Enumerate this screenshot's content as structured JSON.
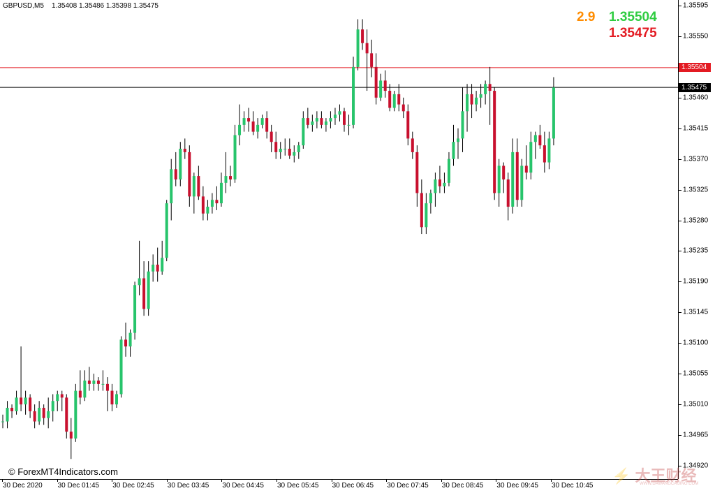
{
  "header": {
    "symbol": "GBPUSD,M5",
    "ohlc": "1.35408 1.35486 1.35398 1.35475"
  },
  "spread_panel": {
    "spread": "2.9",
    "ask": "1.35504",
    "bid": "1.35475"
  },
  "watermark": "© ForexMT4Indicators.com",
  "colors": {
    "bull": "#27c46b",
    "bear": "#c8102e",
    "ask_line": "#e31b23",
    "bid_line": "#000000",
    "spread": "#ff8c00",
    "ask_text": "#2ecc40",
    "bid_text": "#e31b23"
  },
  "chart_data": {
    "type": "candlestick",
    "title": "GBPUSD,M5",
    "y_ticks": [
      "1.35595",
      "1.35550",
      "1.35505",
      "1.35460",
      "1.35415",
      "1.35370",
      "1.35325",
      "1.35280",
      "1.35235",
      "1.35190",
      "1.35145",
      "1.35100",
      "1.35055",
      "1.35010",
      "1.34965",
      "1.34920"
    ],
    "x_ticks": [
      "30 Dec 2020",
      "30 Dec 01:45",
      "30 Dec 02:45",
      "30 Dec 03:45",
      "30 Dec 04:45",
      "30 Dec 05:45",
      "30 Dec 06:45",
      "30 Dec 07:45",
      "30 Dec 08:45",
      "30 Dec 09:45",
      "30 Dec 10:45"
    ],
    "ylim": [
      1.3492,
      1.35595
    ],
    "ask_price": 1.35504,
    "bid_price": 1.35475,
    "candles": [
      [
        1.34985,
        1.34995,
        1.34975,
        1.34985
      ],
      [
        1.34985,
        1.35015,
        1.34975,
        1.35005
      ],
      [
        1.35005,
        1.3501,
        1.3499,
        1.35
      ],
      [
        1.35,
        1.3503,
        1.34995,
        1.3502
      ],
      [
        1.3502,
        1.35095,
        1.35,
        1.3501
      ],
      [
        1.3501,
        1.3503,
        1.34995,
        1.3502
      ],
      [
        1.3502,
        1.35025,
        1.3499,
        1.35
      ],
      [
        1.35,
        1.3501,
        1.34975,
        1.34985
      ],
      [
        1.34985,
        1.35015,
        1.3498,
        1.35005
      ],
      [
        1.35005,
        1.3501,
        1.3498,
        1.3499
      ],
      [
        1.3499,
        1.3502,
        1.34975,
        1.35
      ],
      [
        1.35,
        1.35025,
        1.34985,
        1.35015
      ],
      [
        1.35015,
        1.3503,
        1.35,
        1.35025
      ],
      [
        1.35025,
        1.3503,
        1.35,
        1.3502
      ],
      [
        1.3502,
        1.35025,
        1.3496,
        1.3497
      ],
      [
        1.3497,
        1.3499,
        1.3493,
        1.3496
      ],
      [
        1.3496,
        1.3504,
        1.34955,
        1.3503
      ],
      [
        1.3503,
        1.3506,
        1.3501,
        1.3502
      ],
      [
        1.3502,
        1.3506,
        1.35015,
        1.35045
      ],
      [
        1.35045,
        1.35065,
        1.3503,
        1.3504
      ],
      [
        1.3504,
        1.35055,
        1.3503,
        1.35045
      ],
      [
        1.35045,
        1.3505,
        1.3503,
        1.3504
      ],
      [
        1.3504,
        1.3506,
        1.3503,
        1.3504
      ],
      [
        1.3504,
        1.3505,
        1.35,
        1.3503
      ],
      [
        1.3503,
        1.3504,
        1.35,
        1.3501
      ],
      [
        1.3501,
        1.3503,
        1.35005,
        1.35025
      ],
      [
        1.35025,
        1.3511,
        1.3502,
        1.35105
      ],
      [
        1.35105,
        1.3513,
        1.3508,
        1.35095
      ],
      [
        1.35095,
        1.3512,
        1.3508,
        1.35115
      ],
      [
        1.35115,
        1.3519,
        1.35105,
        1.35185
      ],
      [
        1.35185,
        1.3525,
        1.3517,
        1.35195
      ],
      [
        1.35195,
        1.3522,
        1.3514,
        1.3515
      ],
      [
        1.3515,
        1.3522,
        1.3514,
        1.35205
      ],
      [
        1.35205,
        1.3523,
        1.3519,
        1.35215
      ],
      [
        1.35215,
        1.3524,
        1.3519,
        1.35205
      ],
      [
        1.35205,
        1.3525,
        1.352,
        1.35225
      ],
      [
        1.35225,
        1.3531,
        1.3522,
        1.35305
      ],
      [
        1.35305,
        1.3537,
        1.3528,
        1.35355
      ],
      [
        1.35355,
        1.3538,
        1.3533,
        1.3534
      ],
      [
        1.3534,
        1.35395,
        1.3533,
        1.35385
      ],
      [
        1.35385,
        1.354,
        1.3537,
        1.3538
      ],
      [
        1.3538,
        1.3539,
        1.353,
        1.35315
      ],
      [
        1.35315,
        1.3535,
        1.3529,
        1.35345
      ],
      [
        1.35345,
        1.3536,
        1.3531,
        1.35315
      ],
      [
        1.35315,
        1.3533,
        1.3528,
        1.3529
      ],
      [
        1.3529,
        1.3531,
        1.3528,
        1.353
      ],
      [
        1.353,
        1.3532,
        1.3529,
        1.3531
      ],
      [
        1.3531,
        1.3533,
        1.35295,
        1.35305
      ],
      [
        1.35305,
        1.3535,
        1.353,
        1.35335
      ],
      [
        1.35335,
        1.3538,
        1.3532,
        1.35345
      ],
      [
        1.35345,
        1.3536,
        1.3533,
        1.3534
      ],
      [
        1.3534,
        1.3542,
        1.35335,
        1.35405
      ],
      [
        1.35405,
        1.3545,
        1.3539,
        1.3542
      ],
      [
        1.3542,
        1.3544,
        1.3541,
        1.3543
      ],
      [
        1.3543,
        1.35445,
        1.3541,
        1.35425
      ],
      [
        1.35425,
        1.3544,
        1.35405,
        1.3541
      ],
      [
        1.3541,
        1.3543,
        1.354,
        1.3542
      ],
      [
        1.3542,
        1.35435,
        1.35415,
        1.3543
      ],
      [
        1.3543,
        1.3544,
        1.354,
        1.3541
      ],
      [
        1.3541,
        1.3542,
        1.3538,
        1.35395
      ],
      [
        1.35395,
        1.3541,
        1.3537,
        1.3538
      ],
      [
        1.3538,
        1.35395,
        1.3537,
        1.35385
      ],
      [
        1.35385,
        1.354,
        1.35375,
        1.35385
      ],
      [
        1.35385,
        1.354,
        1.3537,
        1.35375
      ],
      [
        1.35375,
        1.3539,
        1.35365,
        1.3538
      ],
      [
        1.3538,
        1.35395,
        1.3537,
        1.3539
      ],
      [
        1.3539,
        1.3544,
        1.35385,
        1.3543
      ],
      [
        1.3543,
        1.35445,
        1.35415,
        1.3542
      ],
      [
        1.3542,
        1.35435,
        1.3541,
        1.35425
      ],
      [
        1.35425,
        1.3544,
        1.35415,
        1.3543
      ],
      [
        1.3543,
        1.3544,
        1.35415,
        1.3542
      ],
      [
        1.3542,
        1.3543,
        1.3541,
        1.35425
      ],
      [
        1.35425,
        1.3544,
        1.35415,
        1.3543
      ],
      [
        1.3543,
        1.35445,
        1.3542,
        1.35435
      ],
      [
        1.35435,
        1.3545,
        1.35425,
        1.3544
      ],
      [
        1.3544,
        1.35445,
        1.3541,
        1.3542
      ],
      [
        1.3542,
        1.35435,
        1.35405,
        1.3542
      ],
      [
        1.3542,
        1.3552,
        1.35415,
        1.35505
      ],
      [
        1.35505,
        1.35575,
        1.355,
        1.3556
      ],
      [
        1.3556,
        1.35575,
        1.3553,
        1.3554
      ],
      [
        1.3554,
        1.3556,
        1.3547,
        1.35525
      ],
      [
        1.35525,
        1.35545,
        1.3549,
        1.35505
      ],
      [
        1.35505,
        1.35525,
        1.3545,
        1.3546
      ],
      [
        1.3546,
        1.35495,
        1.35455,
        1.35485
      ],
      [
        1.35485,
        1.355,
        1.3546,
        1.3547
      ],
      [
        1.3547,
        1.3548,
        1.3544,
        1.35445
      ],
      [
        1.35445,
        1.3547,
        1.3544,
        1.35465
      ],
      [
        1.35465,
        1.3548,
        1.3544,
        1.3545
      ],
      [
        1.3545,
        1.3546,
        1.3543,
        1.3544
      ],
      [
        1.3544,
        1.3545,
        1.3539,
        1.354
      ],
      [
        1.354,
        1.3541,
        1.3537,
        1.3538
      ],
      [
        1.3538,
        1.3539,
        1.353,
        1.3532
      ],
      [
        1.3532,
        1.3534,
        1.3526,
        1.3527
      ],
      [
        1.3527,
        1.3532,
        1.3526,
        1.35305
      ],
      [
        1.35305,
        1.35325,
        1.3529,
        1.3532
      ],
      [
        1.3532,
        1.3535,
        1.353,
        1.3534
      ],
      [
        1.3534,
        1.3536,
        1.3532,
        1.3533
      ],
      [
        1.3533,
        1.3535,
        1.3532,
        1.35335
      ],
      [
        1.35335,
        1.3538,
        1.3533,
        1.3537
      ],
      [
        1.3537,
        1.3542,
        1.3536,
        1.35395
      ],
      [
        1.35395,
        1.35415,
        1.3537,
        1.354
      ],
      [
        1.354,
        1.35475,
        1.3538,
        1.3544
      ],
      [
        1.3544,
        1.3548,
        1.3541,
        1.35465
      ],
      [
        1.35465,
        1.3548,
        1.3543,
        1.3545
      ],
      [
        1.3545,
        1.3547,
        1.3544,
        1.3546
      ],
      [
        1.3546,
        1.3548,
        1.35445,
        1.35465
      ],
      [
        1.35465,
        1.35485,
        1.3545,
        1.3548
      ],
      [
        1.3548,
        1.35505,
        1.3542,
        1.3547
      ],
      [
        1.3547,
        1.35475,
        1.3531,
        1.3532
      ],
      [
        1.3532,
        1.3537,
        1.353,
        1.3536
      ],
      [
        1.3536,
        1.35365,
        1.3532,
        1.3534
      ],
      [
        1.3534,
        1.3535,
        1.3528,
        1.353
      ],
      [
        1.353,
        1.354,
        1.3529,
        1.3538
      ],
      [
        1.3538,
        1.354,
        1.353,
        1.3531
      ],
      [
        1.3531,
        1.3537,
        1.353,
        1.3536
      ],
      [
        1.3536,
        1.3539,
        1.3534,
        1.3535
      ],
      [
        1.3535,
        1.3541,
        1.3534,
        1.35395
      ],
      [
        1.35395,
        1.3541,
        1.3537,
        1.35405
      ],
      [
        1.35405,
        1.3542,
        1.35385,
        1.3539
      ],
      [
        1.3539,
        1.3541,
        1.3535,
        1.35365
      ],
      [
        1.35365,
        1.3541,
        1.35355,
        1.354
      ],
      [
        1.354,
        1.3549,
        1.3539,
        1.35475
      ]
    ]
  }
}
